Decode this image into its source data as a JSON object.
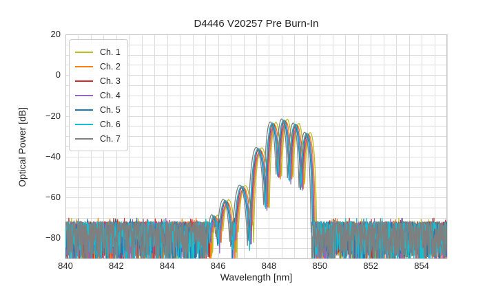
{
  "figure": {
    "background_color": "#ffffff",
    "text_color": "#262626"
  },
  "chart_data": {
    "type": "line",
    "title": "D4446 V20257 Pre Burn-In",
    "xlabel": "Wavelength [nm]",
    "ylabel": "Optical Power [dB]",
    "xlim": [
      840,
      855
    ],
    "ylim": [
      -90,
      20
    ],
    "x_ticks": {
      "values": [
        840,
        842,
        844,
        846,
        848,
        850,
        852,
        854
      ],
      "labels": [
        "840",
        "842",
        "844",
        "846",
        "848",
        "850",
        "852",
        "854"
      ]
    },
    "y_ticks": {
      "values": [
        20,
        0,
        -20,
        -40,
        -60,
        -80
      ],
      "labels": [
        "20",
        "0",
        "−20",
        "−40",
        "−60",
        "−80"
      ]
    },
    "grid": {
      "x_step_nm": 0.5,
      "y_step_dB": 5,
      "color": "#dcdcdc",
      "spine_color": "#c8c8c8",
      "grid_on": true
    },
    "legend": {
      "position": "upper-left"
    },
    "noise_floor": {
      "top_dB": -72,
      "bottom_dB": -90
    },
    "signal_band_nm": [
      845.6,
      850.0
    ],
    "lobe_gain_dB": 50,
    "envelope_lobes": [
      {
        "center_nm": 845.85,
        "peak_dB": -69.5,
        "half_width_nm": 0.26
      },
      {
        "center_nm": 846.3,
        "peak_dB": -62.0,
        "half_width_nm": 0.34
      },
      {
        "center_nm": 846.95,
        "peak_dB": -55.0,
        "half_width_nm": 0.36
      },
      {
        "center_nm": 847.6,
        "peak_dB": -36.5,
        "half_width_nm": 0.35
      },
      {
        "center_nm": 848.15,
        "peak_dB": -24.0,
        "half_width_nm": 0.28
      },
      {
        "center_nm": 848.6,
        "peak_dB": -22.5,
        "half_width_nm": 0.27
      },
      {
        "center_nm": 849.05,
        "peak_dB": -24.5,
        "half_width_nm": 0.27
      },
      {
        "center_nm": 849.5,
        "peak_dB": -29.0,
        "half_width_nm": 0.27
      }
    ],
    "series": [
      {
        "name": "Ch. 1",
        "color": "#bcbd22",
        "wavelength_offset_nm": 0.12,
        "level_offset_dB": 0.8
      },
      {
        "name": "Ch. 2",
        "color": "#ff7f0e",
        "wavelength_offset_nm": 0.07,
        "level_offset_dB": -0.5
      },
      {
        "name": "Ch. 3",
        "color": "#d62728",
        "wavelength_offset_nm": 0.01,
        "level_offset_dB": 0.3
      },
      {
        "name": "Ch. 4",
        "color": "#9467bd",
        "wavelength_offset_nm": 0.03,
        "level_offset_dB": -1.2
      },
      {
        "name": "Ch. 5",
        "color": "#1f77b4",
        "wavelength_offset_nm": -0.04,
        "level_offset_dB": 0.0
      },
      {
        "name": "Ch. 6",
        "color": "#17becf",
        "wavelength_offset_nm": -0.02,
        "level_offset_dB": 0.5
      },
      {
        "name": "Ch. 7",
        "color": "#7f7f7f",
        "wavelength_offset_nm": -0.1,
        "level_offset_dB": 1.0
      }
    ]
  }
}
